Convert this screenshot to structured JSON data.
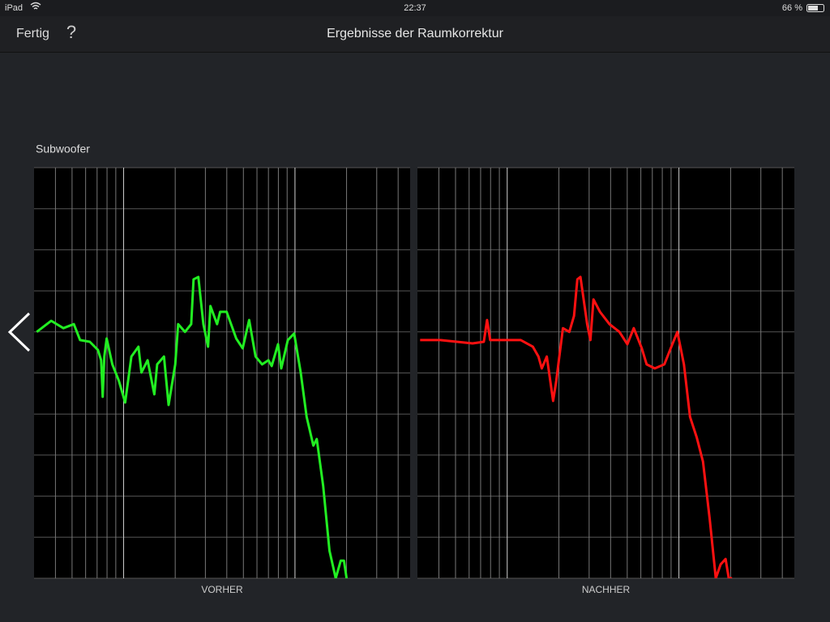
{
  "status_bar": {
    "device": "iPad",
    "time": "22:37",
    "battery": "66 %"
  },
  "nav_bar": {
    "back": "Fertig",
    "help": "?",
    "title": "Ergebnisse der Raumkorrektur"
  },
  "section_label": "Subwoofer",
  "chart_data": [
    {
      "type": "line",
      "xlabel": "VORHER",
      "color": "#22ee22",
      "xscale": "log",
      "grid": true,
      "xlim": [
        3,
        470
      ],
      "xticks": [
        4,
        5,
        6,
        7,
        8,
        9,
        10,
        20,
        30,
        40,
        50,
        60,
        70,
        80,
        90,
        100,
        200,
        300,
        400
      ],
      "ylim": [
        0,
        10
      ],
      "yticks": [
        0,
        1,
        2,
        3,
        4,
        5,
        6,
        7,
        8,
        9,
        10
      ],
      "x": [
        3.11,
        3.78,
        4.45,
        5.12,
        5.57,
        6.35,
        7.08,
        7.39,
        7.55,
        7.71,
        7.96,
        8.59,
        9.37,
        10.2,
        11.1,
        12.2,
        12.7,
        13.8,
        15.1,
        15.7,
        17.2,
        18.3,
        20.0,
        20.8,
        22.8,
        24.8,
        25.6,
        27.3,
        29.2,
        31.1,
        32.1,
        35.1,
        36.6,
        39.9,
        45.4,
        49.5,
        54.0,
        58.9,
        64.3,
        70.0,
        73.1,
        79.6,
        83.2,
        90.8,
        98.9,
        108,
        117,
        128,
        134,
        146,
        159,
        173,
        185,
        193,
        200
      ],
      "values": [
        6.0,
        6.27,
        6.09,
        6.19,
        5.8,
        5.76,
        5.56,
        5.31,
        4.42,
        5.4,
        5.84,
        5.21,
        4.81,
        4.28,
        5.4,
        5.64,
        5.01,
        5.31,
        4.48,
        5.21,
        5.4,
        4.22,
        5.21,
        6.19,
        6.0,
        6.19,
        7.28,
        7.34,
        6.19,
        5.64,
        6.63,
        6.19,
        6.49,
        6.49,
        5.84,
        5.6,
        6.29,
        5.4,
        5.21,
        5.31,
        5.17,
        5.7,
        5.11,
        5.8,
        5.96,
        5.01,
        3.93,
        3.23,
        3.39,
        2.25,
        0.67,
        0,
        0.43,
        0.43,
        0
      ]
    },
    {
      "type": "line",
      "xlabel": "NACHHER",
      "color": "#ff1111",
      "xscale": "log",
      "grid": true,
      "xlim": [
        3,
        470
      ],
      "xticks": [
        4,
        5,
        6,
        7,
        8,
        9,
        10,
        20,
        30,
        40,
        50,
        60,
        70,
        80,
        90,
        100,
        200,
        300,
        400
      ],
      "ylim": [
        0,
        10
      ],
      "yticks": [
        0,
        1,
        2,
        3,
        4,
        5,
        6,
        7,
        8,
        9,
        10
      ],
      "x": [
        3.11,
        4.07,
        6.28,
        7.31,
        7.63,
        7.96,
        12.0,
        14.1,
        15.2,
        15.9,
        17.0,
        18.5,
        19.3,
        21.1,
        23.0,
        24.5,
        25.6,
        26.7,
        29.2,
        30.5,
        31.8,
        34.7,
        39.4,
        45.0,
        50.1,
        54.6,
        60.8,
        64.9,
        72.3,
        82.2,
        91.6,
        97.9,
        107,
        116,
        127,
        138,
        151,
        164,
        175,
        187,
        195,
        204
      ],
      "values": [
        5.8,
        5.8,
        5.72,
        5.76,
        6.29,
        5.8,
        5.8,
        5.64,
        5.4,
        5.11,
        5.4,
        4.32,
        4.81,
        6.09,
        6.0,
        6.39,
        7.28,
        7.34,
        6.19,
        5.8,
        6.79,
        6.49,
        6.19,
        6.0,
        5.7,
        6.09,
        5.6,
        5.21,
        5.11,
        5.21,
        5.7,
        6.0,
        5.21,
        3.93,
        3.43,
        2.84,
        1.46,
        0,
        0.34,
        0.47,
        0,
        0
      ]
    }
  ]
}
